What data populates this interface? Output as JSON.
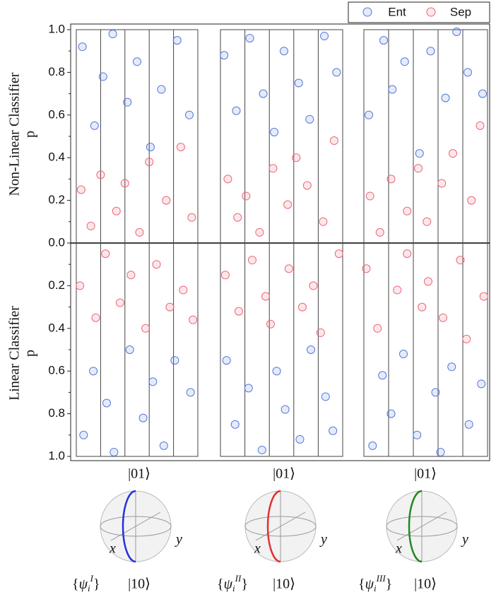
{
  "chart_data": {
    "type": "scatter",
    "top_ylabel": [
      "Non-Linear Classifier",
      "p"
    ],
    "bottom_ylabel": [
      "Linear Classifier",
      "p"
    ],
    "ylim": [
      0,
      1
    ],
    "yticks": [
      {
        "value": 0,
        "label": "0.0"
      },
      0.2,
      0.4,
      0.6,
      0.8,
      {
        "value": 1,
        "label": "1.0"
      }
    ],
    "series": [
      {
        "name": "Ent",
        "color": "#5577dd"
      },
      {
        "name": "Sep",
        "color": "#ee6677"
      }
    ],
    "groups": [
      {
        "top_label": "|01⟩",
        "bottom_label": "|10⟩",
        "x_label": "x",
        "y_label": "y",
        "color": "#2233dd",
        "set_label": {
          "open": "{",
          "symbol": "ψ",
          "sub": "i",
          "sup": "I",
          "close": "}"
        },
        "nonlinear": [
          {
            "x": [
              0.05,
              0.15,
              0.22,
              0.3,
              0.42,
              0.5,
              0.61,
              0.7,
              0.83,
              0.93
            ],
            "y": [
              0.92,
              0.55,
              0.78,
              0.98,
              0.66,
              0.85,
              0.45,
              0.72,
              0.95,
              0.6
            ]
          },
          {
            "x": [
              0.04,
              0.12,
              0.2,
              0.33,
              0.4,
              0.52,
              0.6,
              0.74,
              0.86,
              0.95
            ],
            "y": [
              0.25,
              0.08,
              0.32,
              0.15,
              0.28,
              0.05,
              0.38,
              0.2,
              0.45,
              0.12
            ]
          }
        ],
        "linear": [
          {
            "x": [
              0.06,
              0.14,
              0.25,
              0.31,
              0.44,
              0.55,
              0.63,
              0.72,
              0.81,
              0.94
            ],
            "y": [
              0.9,
              0.6,
              0.75,
              0.98,
              0.5,
              0.82,
              0.65,
              0.95,
              0.55,
              0.7
            ]
          },
          {
            "x": [
              0.03,
              0.16,
              0.24,
              0.36,
              0.45,
              0.57,
              0.66,
              0.77,
              0.88,
              0.96
            ],
            "y": [
              0.2,
              0.35,
              0.05,
              0.28,
              0.15,
              0.4,
              0.1,
              0.3,
              0.22,
              0.36
            ]
          }
        ]
      },
      {
        "top_label": "|01⟩",
        "bottom_label": "|10⟩",
        "x_label": "x",
        "y_label": "y",
        "color": "#e03030",
        "set_label": {
          "open": "{",
          "symbol": "ψ",
          "sub": "i",
          "sup": "II",
          "close": "}"
        },
        "nonlinear": [
          {
            "x": [
              0.03,
              0.13,
              0.24,
              0.35,
              0.44,
              0.52,
              0.64,
              0.73,
              0.85,
              0.95
            ],
            "y": [
              0.88,
              0.62,
              0.96,
              0.7,
              0.52,
              0.9,
              0.75,
              0.58,
              0.97,
              0.8
            ]
          },
          {
            "x": [
              0.06,
              0.14,
              0.21,
              0.32,
              0.43,
              0.55,
              0.62,
              0.71,
              0.84,
              0.93
            ],
            "y": [
              0.3,
              0.12,
              0.22,
              0.05,
              0.35,
              0.18,
              0.4,
              0.27,
              0.1,
              0.48
            ]
          }
        ],
        "linear": [
          {
            "x": [
              0.05,
              0.12,
              0.23,
              0.34,
              0.46,
              0.53,
              0.65,
              0.74,
              0.86,
              0.92
            ],
            "y": [
              0.55,
              0.85,
              0.68,
              0.97,
              0.6,
              0.78,
              0.92,
              0.5,
              0.72,
              0.88
            ]
          },
          {
            "x": [
              0.04,
              0.15,
              0.26,
              0.37,
              0.41,
              0.56,
              0.67,
              0.76,
              0.82,
              0.97
            ],
            "y": [
              0.15,
              0.32,
              0.08,
              0.25,
              0.38,
              0.12,
              0.3,
              0.2,
              0.42,
              0.05
            ]
          }
        ]
      },
      {
        "top_label": "|01⟩",
        "bottom_label": "|10⟩",
        "x_label": "x",
        "y_label": "y",
        "color": "#228822",
        "set_label": {
          "open": "{",
          "symbol": "ψ",
          "sub": "i",
          "sup": "III",
          "close": "}"
        },
        "nonlinear": [
          {
            "x": [
              0.04,
              0.16,
              0.23,
              0.33,
              0.45,
              0.54,
              0.66,
              0.75,
              0.84,
              0.96
            ],
            "y": [
              0.6,
              0.95,
              0.72,
              0.85,
              0.42,
              0.9,
              0.68,
              0.99,
              0.8,
              0.7
            ]
          },
          {
            "x": [
              0.05,
              0.13,
              0.22,
              0.35,
              0.44,
              0.51,
              0.63,
              0.72,
              0.87,
              0.94
            ],
            "y": [
              0.22,
              0.05,
              0.3,
              0.15,
              0.35,
              0.1,
              0.28,
              0.42,
              0.2,
              0.55
            ]
          }
        ],
        "linear": [
          {
            "x": [
              0.07,
              0.15,
              0.22,
              0.32,
              0.43,
              0.58,
              0.62,
              0.71,
              0.85,
              0.95
            ],
            "y": [
              0.95,
              0.62,
              0.8,
              0.52,
              0.9,
              0.7,
              0.98,
              0.58,
              0.85,
              0.66
            ]
          },
          {
            "x": [
              0.02,
              0.11,
              0.27,
              0.35,
              0.47,
              0.52,
              0.64,
              0.78,
              0.83,
              0.97
            ],
            "y": [
              0.12,
              0.4,
              0.22,
              0.05,
              0.3,
              0.18,
              0.35,
              0.08,
              0.45,
              0.25
            ]
          }
        ]
      }
    ]
  }
}
